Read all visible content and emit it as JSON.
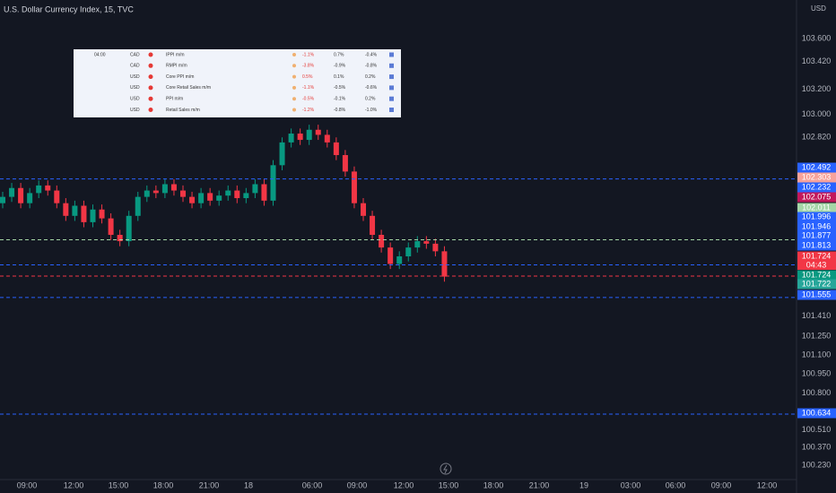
{
  "chart_data": {
    "type": "candlestick",
    "title": "U.S. Dollar Currency Index, 15, TVC",
    "currency": "USD",
    "ylim": [
      100.117,
      103.905
    ],
    "yticks": [
      {
        "value": 103.6,
        "label": "103.600"
      },
      {
        "value": 103.42,
        "label": "103.420"
      },
      {
        "value": 103.2,
        "label": "103.200"
      },
      {
        "value": 103.0,
        "label": "103.000"
      },
      {
        "value": 102.82,
        "label": "102.820"
      },
      {
        "value": 101.41,
        "label": "101.410"
      },
      {
        "value": 101.25,
        "label": "101.250"
      },
      {
        "value": 101.1,
        "label": "101.100"
      },
      {
        "value": 100.95,
        "label": "100.950"
      },
      {
        "value": 100.8,
        "label": "100.800"
      },
      {
        "value": 100.51,
        "label": "100.510"
      },
      {
        "value": 100.37,
        "label": "100.370"
      },
      {
        "value": 100.23,
        "label": "100.230"
      }
    ],
    "time_labels": [
      "09:00",
      "12:00",
      "15:00",
      "18:00",
      "21:00",
      "18",
      "06:00",
      "09:00",
      "12:00",
      "15:00",
      "18:00",
      "21:00",
      "19",
      "03:00",
      "06:00",
      "09:00",
      "12:00"
    ],
    "up_color": "#089981",
    "down_color": "#f23645",
    "open": [
      102.3,
      102.35,
      102.42,
      102.3,
      102.38,
      102.44,
      102.4,
      102.3,
      102.2,
      102.28,
      102.15,
      102.25,
      102.18,
      102.05,
      102.0,
      102.2,
      102.35,
      102.4,
      102.38,
      102.45,
      102.4,
      102.35,
      102.3,
      102.38,
      102.32,
      102.36,
      102.4,
      102.34,
      102.38,
      102.45,
      102.32,
      102.6,
      102.78,
      102.85,
      102.8,
      102.88,
      102.84,
      102.78,
      102.68,
      102.55,
      102.3,
      102.2,
      102.05,
      101.95,
      101.82,
      101.88,
      101.95,
      102.0,
      101.98,
      101.92
    ],
    "high": [
      102.39,
      102.46,
      102.46,
      102.42,
      102.48,
      102.48,
      102.44,
      102.34,
      102.32,
      102.32,
      102.29,
      102.29,
      102.22,
      102.09,
      102.24,
      102.39,
      102.44,
      102.44,
      102.49,
      102.49,
      102.44,
      102.39,
      102.42,
      102.42,
      102.4,
      102.44,
      102.44,
      102.42,
      102.49,
      102.49,
      102.64,
      102.82,
      102.89,
      102.89,
      102.92,
      102.92,
      102.88,
      102.82,
      102.72,
      102.59,
      102.34,
      102.24,
      102.09,
      101.99,
      101.92,
      101.99,
      102.04,
      102.04,
      102.02,
      101.96
    ],
    "low": [
      102.26,
      102.31,
      102.26,
      102.26,
      102.34,
      102.36,
      102.26,
      102.16,
      102.16,
      102.11,
      102.11,
      102.14,
      102.01,
      101.96,
      101.96,
      102.16,
      102.31,
      102.34,
      102.34,
      102.36,
      102.31,
      102.26,
      102.26,
      102.28,
      102.28,
      102.32,
      102.3,
      102.3,
      102.34,
      102.28,
      102.28,
      102.56,
      102.74,
      102.76,
      102.76,
      102.8,
      102.74,
      102.64,
      102.51,
      102.26,
      102.16,
      102.01,
      101.91,
      101.78,
      101.78,
      101.84,
      101.91,
      101.94,
      101.88,
      101.68
    ],
    "close": [
      102.35,
      102.42,
      102.3,
      102.38,
      102.44,
      102.4,
      102.3,
      102.2,
      102.28,
      102.15,
      102.25,
      102.18,
      102.05,
      102.0,
      102.2,
      102.35,
      102.4,
      102.38,
      102.45,
      102.4,
      102.35,
      102.3,
      102.38,
      102.32,
      102.36,
      102.4,
      102.34,
      102.38,
      102.45,
      102.32,
      102.6,
      102.78,
      102.85,
      102.8,
      102.88,
      102.84,
      102.78,
      102.68,
      102.55,
      102.3,
      102.2,
      102.05,
      101.95,
      101.82,
      101.88,
      101.95,
      102.0,
      101.98,
      101.92,
      101.72
    ],
    "price_tags": [
      {
        "value": 102.492,
        "color": "#2962ff",
        "dashed": true
      },
      {
        "value": 102.303,
        "color": "#f7a29a",
        "dashed": false
      },
      {
        "value": 102.232,
        "color": "#2962ff",
        "dashed": false
      },
      {
        "value": 102.075,
        "color": "#c2185b",
        "dashed": false
      },
      {
        "value": 102.011,
        "color": "#a5d6a7",
        "dashed": true
      },
      {
        "value": 101.996,
        "color": "#2962ff",
        "dashed": false
      },
      {
        "value": 101.946,
        "color": "#2962ff",
        "dashed": false
      },
      {
        "value": 101.877,
        "color": "#2962ff",
        "dashed": false
      },
      {
        "value": 101.813,
        "color": "#2962ff",
        "dashed": true
      },
      {
        "value": 101.724,
        "color": "#f23645",
        "dashed": true
      },
      {
        "value": 101.724,
        "color": "#089981",
        "dashed": false
      },
      {
        "value": 101.722,
        "color": "#26a69a",
        "dashed": false
      },
      {
        "value": 101.555,
        "color": "#2962ff",
        "dashed": true
      },
      {
        "value": 100.634,
        "color": "#2962ff",
        "dashed": true
      }
    ],
    "countdown": "04:43"
  },
  "calendar": {
    "time": "04:00",
    "rows": [
      [
        "CAD",
        "IPPI m/m",
        "-1.1%",
        "0.7%",
        "-0.4%"
      ],
      [
        "CAD",
        "RMPI m/m",
        "-3.8%",
        "-0.9%",
        "-0.8%"
      ],
      [
        "USD",
        "Core PPI m/m",
        "0.5%",
        "0.1%",
        "0.2%"
      ],
      [
        "USD",
        "Core Retail Sales m/m",
        "-1.1%",
        "-0.5%",
        "-0.6%"
      ],
      [
        "USD",
        "PPI m/m",
        "-0.5%",
        "-0.1%",
        "0.2%"
      ],
      [
        "USD",
        "Retail Sales m/m",
        "-1.2%",
        "-0.8%",
        "-1.0%"
      ]
    ]
  }
}
